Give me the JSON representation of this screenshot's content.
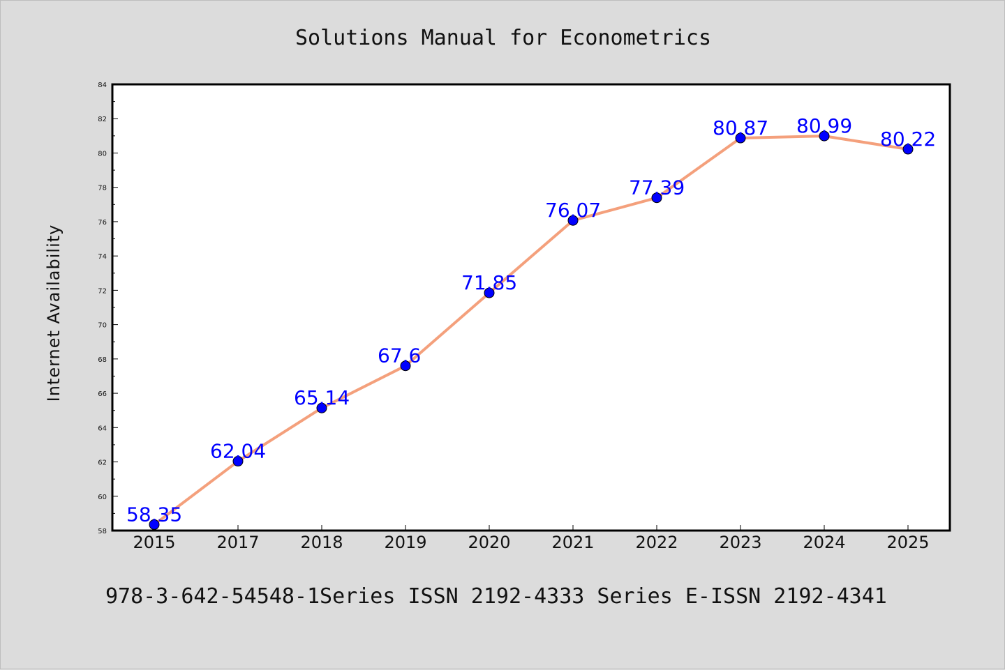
{
  "chart_data": {
    "type": "line",
    "title": "Solutions Manual for Econometrics",
    "xlabel": "",
    "ylabel": "Internet Availability",
    "categories": [
      "2015",
      "2017",
      "2018",
      "2019",
      "2020",
      "2021",
      "2022",
      "2023",
      "2024",
      "2025"
    ],
    "series": [
      {
        "values": [
          58.35,
          62.04,
          65.14,
          67.6,
          71.85,
          76.07,
          77.39,
          80.87,
          80.99,
          80.22
        ]
      }
    ],
    "data_labels": [
      "58.35",
      "62.04",
      "65.14",
      "67.6",
      "71.85",
      "76.07",
      "77.39",
      "80.87",
      "80.99",
      "80.22"
    ],
    "ylim": [
      58,
      84
    ],
    "yticks": [
      "58",
      "60",
      "62",
      "64",
      "66",
      "68",
      "70",
      "72",
      "74",
      "76",
      "78",
      "80",
      "82",
      "84"
    ],
    "grid": false,
    "legend": "none",
    "colors": {
      "line": "#f4a07c",
      "marker": "#0000ff",
      "label": "#0000ff",
      "background": "#dcdcdc",
      "plot_bg": "#ffffff"
    }
  },
  "footer": "978-3-642-54548-1Series ISSN 2192-4333 Series E-ISSN 2192-4341"
}
